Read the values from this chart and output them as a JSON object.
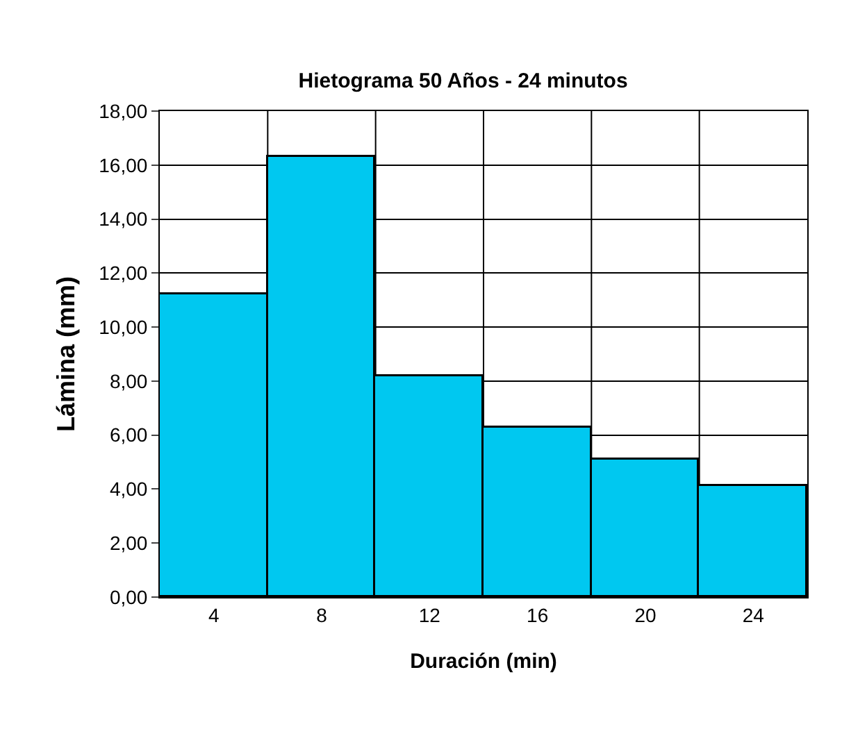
{
  "chart_data": {
    "type": "bar",
    "title": "Hietograma 50 Años - 24 minutos",
    "xlabel": "Duración (min)",
    "ylabel": "Lámina (mm)",
    "categories": [
      "4",
      "8",
      "12",
      "16",
      "20",
      "24"
    ],
    "values": [
      11.2,
      16.3,
      8.2,
      6.3,
      5.1,
      4.1
    ],
    "color": "#00c8f0",
    "ylim": [
      0,
      18
    ],
    "yticks": [
      {
        "value": 0,
        "label": "0,00"
      },
      {
        "value": 2,
        "label": "2,00"
      },
      {
        "value": 4,
        "label": "4,00"
      },
      {
        "value": 6,
        "label": "6,00"
      },
      {
        "value": 8,
        "label": "8,00"
      },
      {
        "value": 10,
        "label": "10,00"
      },
      {
        "value": 12,
        "label": "12,00"
      },
      {
        "value": 14,
        "label": "14,00"
      },
      {
        "value": 16,
        "label": "16,00"
      },
      {
        "value": 18,
        "label": "18,00"
      }
    ],
    "grid": true
  }
}
